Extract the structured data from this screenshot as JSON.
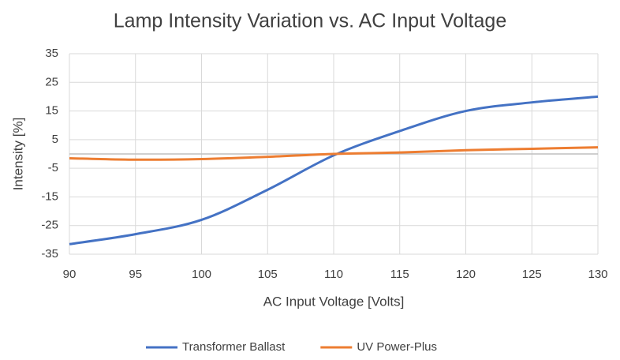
{
  "chart_data": {
    "type": "line",
    "title": "Lamp Intensity Variation vs. AC Input Voltage",
    "xlabel": "AC Input Voltage [Volts]",
    "ylabel": "Intensity [%]",
    "x": [
      90,
      95,
      100,
      105,
      110,
      115,
      120,
      125,
      130
    ],
    "series": [
      {
        "name": "Transformer Ballast",
        "color": "#4472c4",
        "values": [
          -31.5,
          -28,
          -23,
          -12.5,
          -0.5,
          8,
          15,
          18,
          20
        ]
      },
      {
        "name": "UV Power-Plus",
        "color": "#ed7d31",
        "values": [
          -1.5,
          -2,
          -1.8,
          -1,
          0,
          0.5,
          1.3,
          1.8,
          2.3
        ]
      }
    ],
    "xlim": [
      90,
      130
    ],
    "xticks": [
      90,
      95,
      100,
      105,
      110,
      115,
      120,
      125,
      130
    ],
    "ylim": [
      -35,
      35
    ],
    "yticks": [
      -35,
      -25,
      -15,
      -5,
      5,
      15,
      25,
      35
    ],
    "grid": true,
    "legend": "bottom"
  }
}
